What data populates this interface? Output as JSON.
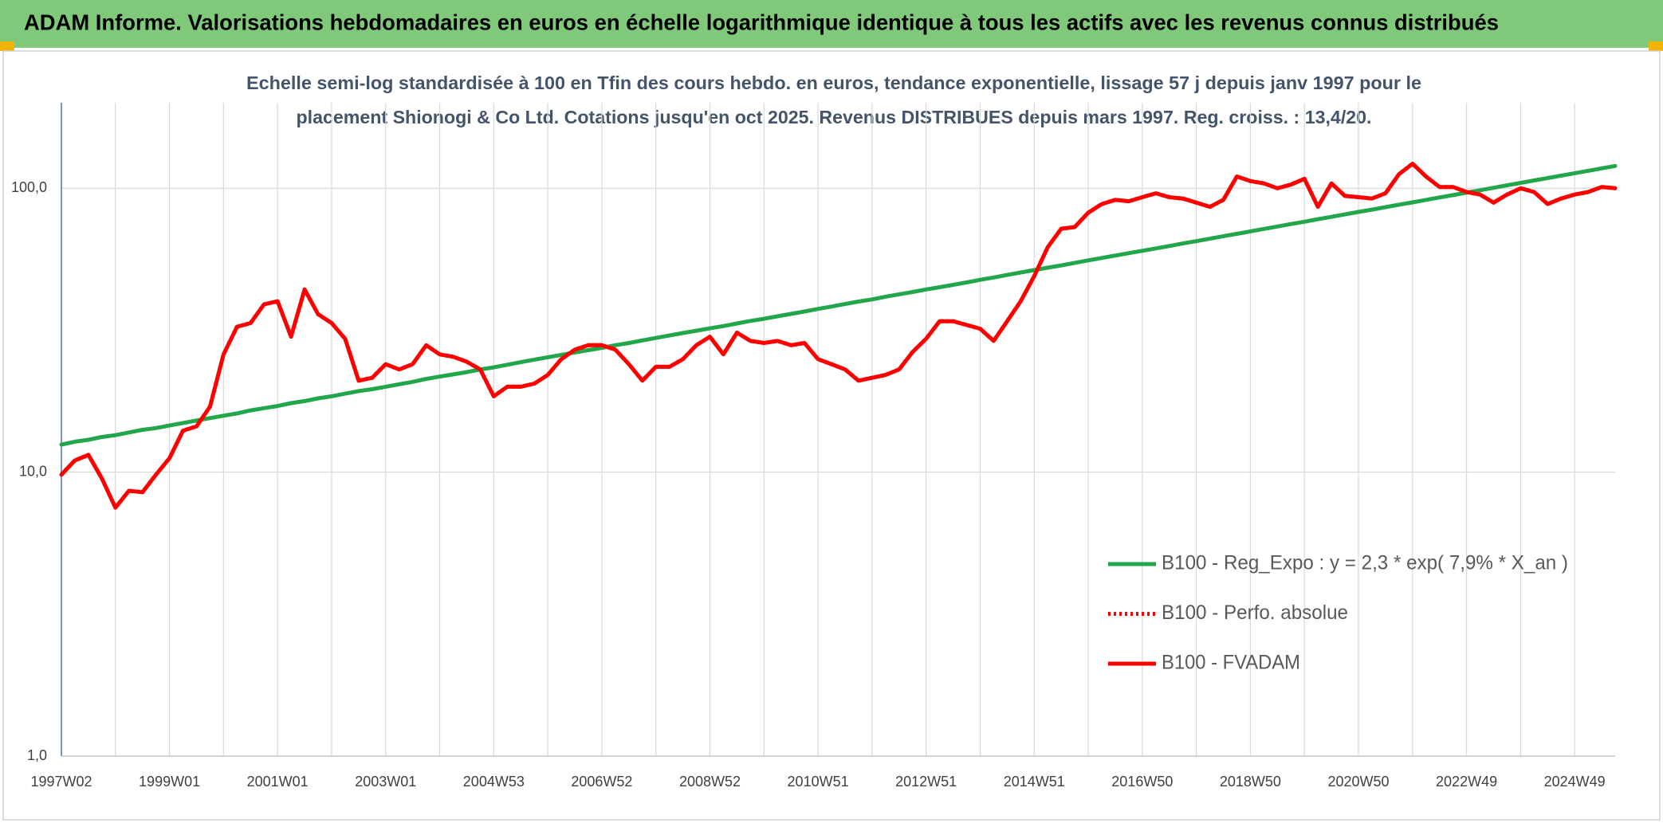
{
  "chart_data": {
    "type": "line",
    "title": "ADAM Informe. Valorisations hebdomadaires en euros en échelle logarithmique identique à tous les actifs avec les revenus connus distribués",
    "subtitle": [
      "Echelle semi-log standardisée à 100 en Tfin des cours hebdo. en euros, tendance exponentielle, lissage 57 j depuis janv 1997 pour le",
      "placement Shionogi & Co Ltd. Cotations jusqu'en oct 2025. Revenus DISTRIBUES depuis mars 1997. Reg. croiss. : 13,4/20."
    ],
    "x": [
      "1997W02",
      null,
      null,
      null,
      null,
      null,
      null,
      null,
      "1999W01",
      null,
      null,
      null,
      null,
      null,
      null,
      null,
      "2001W01",
      null,
      null,
      null,
      null,
      null,
      null,
      null,
      "2003W01",
      null,
      null,
      null,
      null,
      null,
      null,
      null,
      "2004W53",
      null,
      null,
      null,
      null,
      null,
      null,
      null,
      "2006W52",
      null,
      null,
      null,
      null,
      null,
      null,
      null,
      "2008W52",
      null,
      null,
      null,
      null,
      null,
      null,
      null,
      "2010W51",
      null,
      null,
      null,
      null,
      null,
      null,
      null,
      "2012W51",
      null,
      null,
      null,
      null,
      null,
      null,
      null,
      "2014W51",
      null,
      null,
      null,
      null,
      null,
      null,
      null,
      "2016W50",
      null,
      null,
      null,
      null,
      null,
      null,
      null,
      "2018W50",
      null,
      null,
      null,
      null,
      null,
      null,
      null,
      "2020W50",
      null,
      null,
      null,
      null,
      null,
      null,
      null,
      "2022W49",
      null,
      null,
      null,
      null,
      null,
      null,
      null,
      "2024W49",
      null,
      null,
      null
    ],
    "log_scale": true,
    "ylim": [
      1,
      200
    ],
    "yticks": [
      {
        "value": 1,
        "label": "1,0"
      },
      {
        "value": 10,
        "label": "10,0"
      },
      {
        "value": 100,
        "label": "100,0"
      }
    ],
    "grid": true,
    "legend": "bottom-right",
    "series": [
      {
        "name": "B100 - Reg_Expo : y = 2,3 * exp( 7,9% *  X_an )",
        "color": "#22a64a",
        "line_style": "solid",
        "values": [
          12.5,
          12.8,
          13.0,
          13.3,
          13.5,
          13.8,
          14.1,
          14.3,
          14.6,
          14.9,
          15.2,
          15.5,
          15.8,
          16.1,
          16.5,
          16.8,
          17.1,
          17.5,
          17.8,
          18.2,
          18.5,
          18.9,
          19.3,
          19.6,
          20.0,
          20.4,
          20.8,
          21.3,
          21.7,
          22.1,
          22.5,
          23.0,
          23.4,
          23.9,
          24.4,
          24.9,
          25.4,
          25.9,
          26.4,
          26.9,
          27.4,
          28.0,
          28.5,
          29.1,
          29.7,
          30.3,
          30.9,
          31.5,
          32.1,
          32.7,
          33.4,
          34.1,
          34.7,
          35.4,
          36.1,
          36.8,
          37.6,
          38.3,
          39.1,
          39.9,
          40.6,
          41.5,
          42.3,
          43.1,
          44.0,
          44.8,
          45.7,
          46.6,
          47.6,
          48.5,
          49.5,
          50.5,
          51.5,
          52.5,
          53.5,
          54.6,
          55.7,
          56.8,
          57.9,
          59.1,
          60.2,
          61.4,
          62.6,
          63.9,
          65.1,
          66.4,
          67.8,
          69.1,
          70.5,
          71.9,
          73.3,
          74.8,
          76.2,
          77.8,
          79.3,
          80.9,
          82.5,
          84.1,
          85.8,
          87.5,
          89.2,
          91.0,
          92.8,
          94.6,
          96.5,
          98.4,
          100.4,
          102.4,
          104.4,
          106.5,
          108.6,
          110.8,
          113.0,
          115.2,
          117.5,
          119.8
        ]
      },
      {
        "name": "B100 - Perfo. absolue",
        "color": "#ff0000",
        "line_style": "dotted",
        "values": [
          9.8,
          11,
          11.5,
          9.5,
          7.5,
          8.6,
          8.5,
          9.8,
          11.2,
          14,
          14.5,
          17,
          26,
          32.5,
          33.5,
          39,
          40,
          30,
          44,
          36,
          33.5,
          29.5,
          21,
          21.5,
          24,
          23,
          24,
          28,
          26,
          25.5,
          24.5,
          23,
          18.5,
          20,
          20,
          20.5,
          22,
          25,
          27,
          28,
          28,
          27,
          24,
          21,
          23.5,
          23.5,
          25,
          28,
          30,
          26,
          31,
          29,
          28.5,
          29,
          28,
          28.5,
          25,
          24,
          23,
          21,
          21.5,
          22,
          23,
          26.5,
          29.5,
          34,
          34,
          33,
          32,
          29,
          34,
          40,
          49,
          62,
          72,
          73,
          82,
          88,
          91,
          90,
          93,
          96,
          93,
          92,
          89,
          86,
          91,
          110,
          106,
          104,
          100,
          103,
          108,
          86,
          104,
          94,
          93,
          92,
          96,
          112,
          122,
          110,
          101,
          101,
          97,
          95,
          89,
          95,
          100,
          97,
          88,
          92,
          95,
          97,
          101,
          100
        ]
      },
      {
        "name": "B100 - FVADAM",
        "color": "#ff0000",
        "line_style": "solid",
        "values": [
          9.8,
          11,
          11.5,
          9.5,
          7.5,
          8.6,
          8.5,
          9.8,
          11.2,
          14,
          14.5,
          17,
          26,
          32.5,
          33.5,
          39,
          40,
          30,
          44,
          36,
          33.5,
          29.5,
          21,
          21.5,
          24,
          23,
          24,
          28,
          26,
          25.5,
          24.5,
          23,
          18.5,
          20,
          20,
          20.5,
          22,
          25,
          27,
          28,
          28,
          27,
          24,
          21,
          23.5,
          23.5,
          25,
          28,
          30,
          26,
          31,
          29,
          28.5,
          29,
          28,
          28.5,
          25,
          24,
          23,
          21,
          21.5,
          22,
          23,
          26.5,
          29.5,
          34,
          34,
          33,
          32,
          29,
          34,
          40,
          49,
          62,
          72,
          73,
          82,
          88,
          91,
          90,
          93,
          96,
          93,
          92,
          89,
          86,
          91,
          110,
          106,
          104,
          100,
          103,
          108,
          86,
          104,
          94,
          93,
          92,
          96,
          112,
          122,
          110,
          101,
          101,
          97,
          95,
          89,
          95,
          100,
          97,
          88,
          92,
          95,
          97,
          101,
          100
        ]
      }
    ]
  }
}
